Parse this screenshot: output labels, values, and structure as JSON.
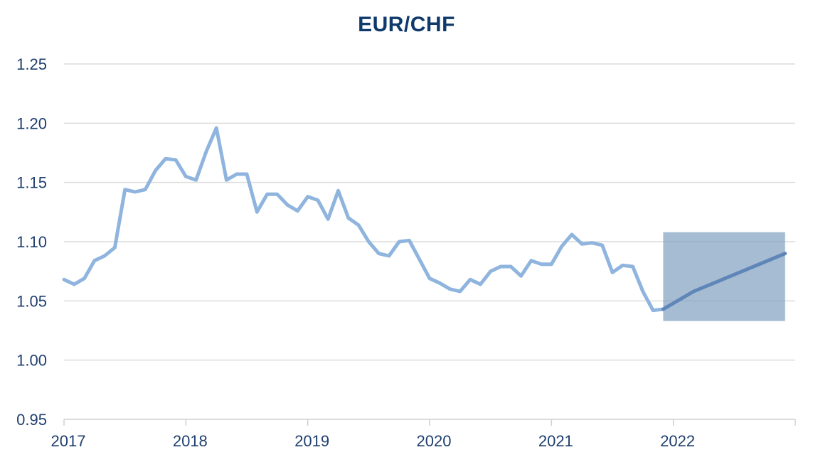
{
  "chart_data": {
    "type": "line",
    "title": "EUR/CHF",
    "xlabel": "",
    "ylabel": "",
    "ylim": [
      0.95,
      1.25
    ],
    "xlim": [
      "2017-01",
      "2022-12"
    ],
    "y_ticks": [
      "0.95",
      "1.00",
      "1.05",
      "1.10",
      "1.15",
      "1.20",
      "1.25"
    ],
    "x_ticks": [
      "2017",
      "2018",
      "2019",
      "2020",
      "2021",
      "2022"
    ],
    "grid": true,
    "legend": "none",
    "series": [
      {
        "color": "#8fb4de",
        "style": "historical",
        "x": [
          "2017-01",
          "2017-02",
          "2017-03",
          "2017-04",
          "2017-05",
          "2017-06",
          "2017-07",
          "2017-08",
          "2017-09",
          "2017-10",
          "2017-11",
          "2017-12",
          "2018-01",
          "2018-02",
          "2018-03",
          "2018-04",
          "2018-05",
          "2018-06",
          "2018-07",
          "2018-08",
          "2018-09",
          "2018-10",
          "2018-11",
          "2018-12",
          "2019-01",
          "2019-02",
          "2019-03",
          "2019-04",
          "2019-05",
          "2019-06",
          "2019-07",
          "2019-08",
          "2019-09",
          "2019-10",
          "2019-11",
          "2019-12",
          "2020-01",
          "2020-02",
          "2020-03",
          "2020-04",
          "2020-05",
          "2020-06",
          "2020-07",
          "2020-08",
          "2020-09",
          "2020-10",
          "2020-11",
          "2020-12",
          "2021-01",
          "2021-02",
          "2021-03",
          "2021-04",
          "2021-05",
          "2021-06",
          "2021-07",
          "2021-08",
          "2021-09",
          "2021-10",
          "2021-11",
          "2021-12"
        ],
        "values": [
          1.068,
          1.064,
          1.069,
          1.084,
          1.088,
          1.095,
          1.144,
          1.142,
          1.144,
          1.16,
          1.17,
          1.169,
          1.155,
          1.152,
          1.176,
          1.196,
          1.152,
          1.157,
          1.157,
          1.125,
          1.14,
          1.14,
          1.131,
          1.126,
          1.138,
          1.135,
          1.119,
          1.143,
          1.12,
          1.114,
          1.1,
          1.09,
          1.088,
          1.1,
          1.101,
          1.085,
          1.069,
          1.065,
          1.06,
          1.058,
          1.068,
          1.064,
          1.075,
          1.079,
          1.079,
          1.071,
          1.084,
          1.081,
          1.081,
          1.096,
          1.106,
          1.098,
          1.099,
          1.097,
          1.074,
          1.08,
          1.079,
          1.058,
          1.042,
          1.043
        ]
      },
      {
        "color": "#5f86b8",
        "style": "forecast",
        "x": [
          "2021-12",
          "2022-03",
          "2022-12"
        ],
        "values": [
          1.043,
          1.058,
          1.09
        ]
      }
    ],
    "forecast_band": {
      "color": "#7f9fc0",
      "x_range": [
        "2021-12",
        "2022-12"
      ],
      "y_range": [
        1.033,
        1.108
      ]
    }
  }
}
